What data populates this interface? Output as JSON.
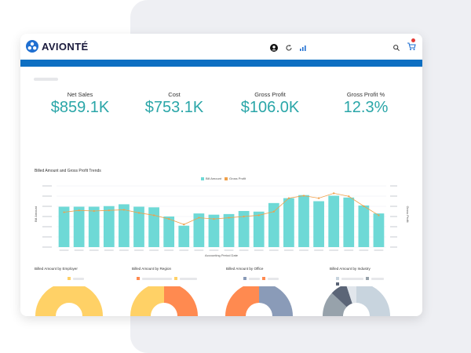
{
  "brand": {
    "name": "AVIONTÉ"
  },
  "topbar": {
    "icons": [
      "user-icon",
      "refresh-icon",
      "bar-chart-icon",
      "search-icon",
      "cart-icon"
    ],
    "badge_count": ""
  },
  "kpis": [
    {
      "label": "Net Sales",
      "value": "$859.1K"
    },
    {
      "label": "Cost",
      "value": "$753.1K"
    },
    {
      "label": "Gross Profit",
      "value": "$106.0K"
    },
    {
      "label": "Gross Profit %",
      "value": "12.3%"
    }
  ],
  "colors": {
    "accent": "#2aa6a8",
    "bar": "#6ed9d6",
    "line": "#f0a04a",
    "header_bar": "#0d6fc2",
    "brand_blue": "#1f6fd1"
  },
  "chart_data": {
    "type": "bar",
    "title": "Billed Amount and Gross Profit Trends",
    "xlabel": "Accounting Period Date",
    "ylabel": "Bill Amount",
    "y2label": "Gross Profit",
    "series": [
      {
        "name": "Bill Amount",
        "values": [
          0.66,
          0.66,
          0.66,
          0.67,
          0.7,
          0.66,
          0.65,
          0.5,
          0.35,
          0.55,
          0.53,
          0.54,
          0.59,
          0.58,
          0.72,
          0.8,
          0.85,
          0.75,
          0.84,
          0.81,
          0.68,
          0.55
        ]
      },
      {
        "name": "Gross Profit",
        "values": [
          0.57,
          0.6,
          0.59,
          0.6,
          0.61,
          0.56,
          0.52,
          0.46,
          0.37,
          0.48,
          0.46,
          0.48,
          0.5,
          0.52,
          0.58,
          0.8,
          0.84,
          0.8,
          0.88,
          0.83,
          0.67,
          0.52
        ]
      }
    ],
    "grid": true,
    "legend": "top-center"
  },
  "donuts": [
    {
      "title": "Billed Amount by Employer",
      "slices": [
        {
          "value": 1.0,
          "color": "#ffd166"
        }
      ],
      "legend": [
        "#ffd166"
      ]
    },
    {
      "title": "Billed Amount by Region",
      "slices": [
        {
          "value": 0.58,
          "color": "#ff8a50"
        },
        {
          "value": 0.42,
          "color": "#ffd166"
        }
      ],
      "legend": [
        "#ff8a50",
        "#ffd166"
      ]
    },
    {
      "title": "Billed Amount by Office",
      "slices": [
        {
          "value": 0.5,
          "color": "#8a9bb8"
        },
        {
          "value": 0.5,
          "color": "#ff8a50"
        }
      ],
      "legend": [
        "#8a9bb8",
        "#ff8a50"
      ]
    },
    {
      "title": "Billed Amount by Industry",
      "slices": [
        {
          "value": 0.47,
          "color": "#c8d4de"
        },
        {
          "value": 0.4,
          "color": "#97a2ab"
        },
        {
          "value": 0.08,
          "color": "#5b6577"
        },
        {
          "value": 0.05,
          "color": "#e1e6ec"
        }
      ],
      "legend": [
        "#c8d4de",
        "#97a2ab",
        "#5b6577"
      ]
    }
  ]
}
